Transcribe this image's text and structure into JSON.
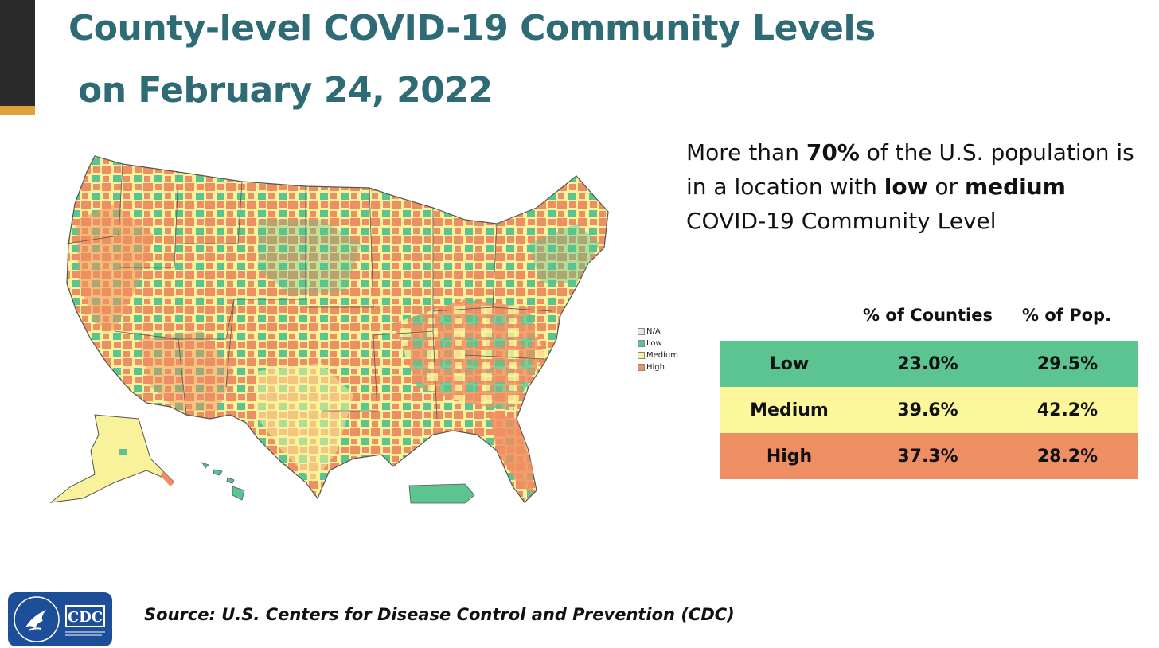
{
  "title": {
    "line1": "County-level COVID-19 Community Levels",
    "line2": "on February 24, 2022"
  },
  "headline": {
    "p1": "More than ",
    "p2": "70%",
    "p3": " of the U.S. population is in a location with ",
    "p4": "low",
    "p5": " or ",
    "p6": "medium",
    "p7": " COVID-19 Community Level"
  },
  "legend": [
    {
      "label": "N/A",
      "color": "#e6e6e6"
    },
    {
      "label": "Low",
      "color": "#5cc490"
    },
    {
      "label": "Medium",
      "color": "#faf29a"
    },
    {
      "label": "High",
      "color": "#ee8f63"
    }
  ],
  "table": {
    "headers": [
      "% of Counties",
      "% of Pop."
    ],
    "rows": [
      {
        "level": "Low",
        "counties": "23.0%",
        "population": "29.5%",
        "color": "#5cc490"
      },
      {
        "level": "Medium",
        "counties": "39.6%",
        "population": "42.2%",
        "color": "#fcf79a"
      },
      {
        "level": "High",
        "counties": "37.3%",
        "population": "28.2%",
        "color": "#ee8f63"
      }
    ]
  },
  "logo": {
    "text": "CDC"
  },
  "source": "Source: U.S. Centers for Disease Control and Prevention (CDC)"
}
